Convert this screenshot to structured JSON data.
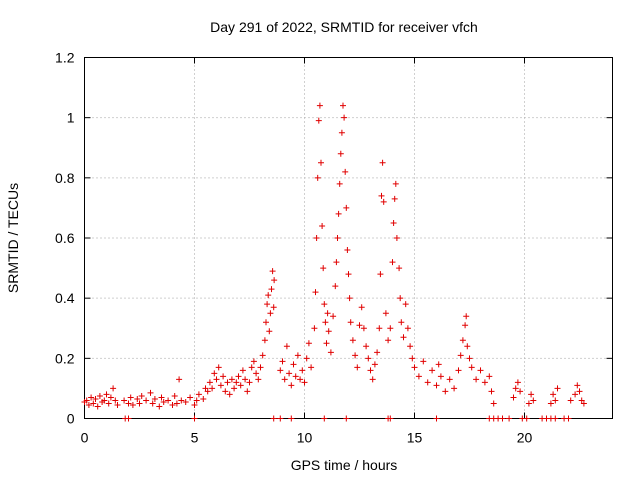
{
  "chart_data": {
    "type": "scatter",
    "title": "Day 291 of 2022, SRMTID for receiver vfch",
    "xlabel": "GPS time / hours",
    "ylabel": "SRMTID / TECUs",
    "xlim": [
      0,
      24
    ],
    "ylim": [
      0,
      1.2
    ],
    "xticks": [
      0,
      5,
      10,
      15,
      20
    ],
    "xtick_labels": [
      "0",
      "5",
      "10",
      "15",
      "20"
    ],
    "yticks": [
      0,
      0.2,
      0.4,
      0.6,
      0.8,
      1.0,
      1.2
    ],
    "ytick_labels": [
      "0",
      "0.2",
      "0.4",
      "0.6",
      "0.8",
      "1",
      "1.2"
    ],
    "grid": "dotted",
    "marker": "+",
    "color": "#e00000",
    "series": [
      {
        "name": "SRMTID",
        "points": [
          [
            0.0,
            0.055
          ],
          [
            0.1,
            0.06
          ],
          [
            0.2,
            0.045
          ],
          [
            0.3,
            0.07
          ],
          [
            0.4,
            0.05
          ],
          [
            0.5,
            0.065
          ],
          [
            0.6,
            0.04
          ],
          [
            0.7,
            0.075
          ],
          [
            0.8,
            0.055
          ],
          [
            0.9,
            0.06
          ],
          [
            1.0,
            0.08
          ],
          [
            1.1,
            0.05
          ],
          [
            1.2,
            0.07
          ],
          [
            1.3,
            0.1
          ],
          [
            1.4,
            0.06
          ],
          [
            1.5,
            0.045
          ],
          [
            1.8,
            0.06
          ],
          [
            2.0,
            0.05
          ],
          [
            2.1,
            0.07
          ],
          [
            2.2,
            0.045
          ],
          [
            2.4,
            0.065
          ],
          [
            2.5,
            0.05
          ],
          [
            2.6,
            0.075
          ],
          [
            2.8,
            0.06
          ],
          [
            3.0,
            0.085
          ],
          [
            3.1,
            0.05
          ],
          [
            3.2,
            0.065
          ],
          [
            3.4,
            0.04
          ],
          [
            3.5,
            0.07
          ],
          [
            3.6,
            0.055
          ],
          [
            3.8,
            0.06
          ],
          [
            4.0,
            0.045
          ],
          [
            4.1,
            0.075
          ],
          [
            4.2,
            0.05
          ],
          [
            4.3,
            0.13
          ],
          [
            4.4,
            0.06
          ],
          [
            4.6,
            0.055
          ],
          [
            4.8,
            0.07
          ],
          [
            5.0,
            0.045
          ],
          [
            5.1,
            0.06
          ],
          [
            5.2,
            0.08
          ],
          [
            5.4,
            0.065
          ],
          [
            5.5,
            0.1
          ],
          [
            5.6,
            0.09
          ],
          [
            5.7,
            0.12
          ],
          [
            5.8,
            0.1
          ],
          [
            5.9,
            0.15
          ],
          [
            6.0,
            0.13
          ],
          [
            6.1,
            0.17
          ],
          [
            6.2,
            0.11
          ],
          [
            6.3,
            0.14
          ],
          [
            6.4,
            0.09
          ],
          [
            6.5,
            0.12
          ],
          [
            6.6,
            0.08
          ],
          [
            6.7,
            0.13
          ],
          [
            6.8,
            0.1
          ],
          [
            6.9,
            0.12
          ],
          [
            7.0,
            0.14
          ],
          [
            7.1,
            0.11
          ],
          [
            7.2,
            0.16
          ],
          [
            7.3,
            0.13
          ],
          [
            7.4,
            0.09
          ],
          [
            7.5,
            0.12
          ],
          [
            7.6,
            0.17
          ],
          [
            7.7,
            0.19
          ],
          [
            7.8,
            0.15
          ],
          [
            7.9,
            0.13
          ],
          [
            8.0,
            0.17
          ],
          [
            8.1,
            0.21
          ],
          [
            8.2,
            0.26
          ],
          [
            8.25,
            0.32
          ],
          [
            8.3,
            0.38
          ],
          [
            8.35,
            0.41
          ],
          [
            8.4,
            0.29
          ],
          [
            8.45,
            0.35
          ],
          [
            8.5,
            0.43
          ],
          [
            8.55,
            0.49
          ],
          [
            8.6,
            0.37
          ],
          [
            8.62,
            0.46
          ],
          [
            8.9,
            0.16
          ],
          [
            9.0,
            0.19
          ],
          [
            9.1,
            0.13
          ],
          [
            9.2,
            0.24
          ],
          [
            9.3,
            0.15
          ],
          [
            9.4,
            0.11
          ],
          [
            9.5,
            0.18
          ],
          [
            9.6,
            0.14
          ],
          [
            9.7,
            0.21
          ],
          [
            9.8,
            0.13
          ],
          [
            9.9,
            0.16
          ],
          [
            10.0,
            0.12
          ],
          [
            10.1,
            0.2
          ],
          [
            10.2,
            0.25
          ],
          [
            10.3,
            0.17
          ],
          [
            10.45,
            0.3
          ],
          [
            10.5,
            0.42
          ],
          [
            10.55,
            0.6
          ],
          [
            10.6,
            0.8
          ],
          [
            10.65,
            0.99
          ],
          [
            10.7,
            1.04
          ],
          [
            10.75,
            0.85
          ],
          [
            10.8,
            0.64
          ],
          [
            10.85,
            0.5
          ],
          [
            10.9,
            0.38
          ],
          [
            10.95,
            0.32
          ],
          [
            11.0,
            0.25
          ],
          [
            11.05,
            0.35
          ],
          [
            11.1,
            0.29
          ],
          [
            11.2,
            0.22
          ],
          [
            11.3,
            0.34
          ],
          [
            11.4,
            0.44
          ],
          [
            11.45,
            0.52
          ],
          [
            11.5,
            0.6
          ],
          [
            11.55,
            0.68
          ],
          [
            11.6,
            0.78
          ],
          [
            11.65,
            0.88
          ],
          [
            11.7,
            0.95
          ],
          [
            11.75,
            1.04
          ],
          [
            11.8,
            1.0
          ],
          [
            11.85,
            0.82
          ],
          [
            11.9,
            0.7
          ],
          [
            11.95,
            0.56
          ],
          [
            12.0,
            0.48
          ],
          [
            12.05,
            0.4
          ],
          [
            12.1,
            0.32
          ],
          [
            12.2,
            0.26
          ],
          [
            12.3,
            0.21
          ],
          [
            12.4,
            0.17
          ],
          [
            12.5,
            0.31
          ],
          [
            12.6,
            0.37
          ],
          [
            12.7,
            0.3
          ],
          [
            12.8,
            0.24
          ],
          [
            12.9,
            0.2
          ],
          [
            13.0,
            0.16
          ],
          [
            13.1,
            0.13
          ],
          [
            13.2,
            0.18
          ],
          [
            13.3,
            0.22
          ],
          [
            13.4,
            0.3
          ],
          [
            13.45,
            0.48
          ],
          [
            13.5,
            0.74
          ],
          [
            13.55,
            0.85
          ],
          [
            13.6,
            0.72
          ],
          [
            13.7,
            0.35
          ],
          [
            13.8,
            0.26
          ],
          [
            13.9,
            0.3
          ],
          [
            14.0,
            0.52
          ],
          [
            14.05,
            0.65
          ],
          [
            14.1,
            0.73
          ],
          [
            14.15,
            0.78
          ],
          [
            14.2,
            0.6
          ],
          [
            14.3,
            0.5
          ],
          [
            14.35,
            0.4
          ],
          [
            14.4,
            0.32
          ],
          [
            14.5,
            0.27
          ],
          [
            14.6,
            0.38
          ],
          [
            14.7,
            0.3
          ],
          [
            14.8,
            0.24
          ],
          [
            14.9,
            0.2
          ],
          [
            15.0,
            0.17
          ],
          [
            15.2,
            0.14
          ],
          [
            15.4,
            0.19
          ],
          [
            15.6,
            0.12
          ],
          [
            15.8,
            0.16
          ],
          [
            16.0,
            0.11
          ],
          [
            16.1,
            0.18
          ],
          [
            16.2,
            0.14
          ],
          [
            16.4,
            0.09
          ],
          [
            16.6,
            0.13
          ],
          [
            16.8,
            0.1
          ],
          [
            17.0,
            0.16
          ],
          [
            17.1,
            0.21
          ],
          [
            17.2,
            0.26
          ],
          [
            17.3,
            0.31
          ],
          [
            17.35,
            0.34
          ],
          [
            17.4,
            0.24
          ],
          [
            17.5,
            0.2
          ],
          [
            17.6,
            0.17
          ],
          [
            17.8,
            0.13
          ],
          [
            18.0,
            0.16
          ],
          [
            18.2,
            0.12
          ],
          [
            18.4,
            0.14
          ],
          [
            18.5,
            0.09
          ],
          [
            18.6,
            0.05
          ],
          [
            19.5,
            0.07
          ],
          [
            19.6,
            0.1
          ],
          [
            19.7,
            0.12
          ],
          [
            19.8,
            0.09
          ],
          [
            20.2,
            0.05
          ],
          [
            20.3,
            0.08
          ],
          [
            20.4,
            0.06
          ],
          [
            21.2,
            0.05
          ],
          [
            21.3,
            0.08
          ],
          [
            21.4,
            0.06
          ],
          [
            21.5,
            0.1
          ],
          [
            22.1,
            0.06
          ],
          [
            22.3,
            0.08
          ],
          [
            22.4,
            0.11
          ],
          [
            22.5,
            0.09
          ],
          [
            22.6,
            0.06
          ],
          [
            22.7,
            0.05
          ],
          [
            1.85,
            0.0
          ],
          [
            2.0,
            0.0
          ],
          [
            5.0,
            0.0
          ],
          [
            8.6,
            0.0
          ],
          [
            8.9,
            0.0
          ],
          [
            9.4,
            0.0
          ],
          [
            10.9,
            0.0
          ],
          [
            11.9,
            0.0
          ],
          [
            13.8,
            0.0
          ],
          [
            13.9,
            0.0
          ],
          [
            16.0,
            0.0
          ],
          [
            18.4,
            0.0
          ],
          [
            18.6,
            0.0
          ],
          [
            18.8,
            0.0
          ],
          [
            19.0,
            0.0
          ],
          [
            19.3,
            0.0
          ],
          [
            19.9,
            0.0
          ],
          [
            20.1,
            0.0
          ],
          [
            20.8,
            0.0
          ],
          [
            21.0,
            0.0
          ],
          [
            21.2,
            0.0
          ],
          [
            21.4,
            0.0
          ],
          [
            21.8,
            0.0
          ],
          [
            22.0,
            0.0
          ]
        ]
      }
    ]
  }
}
